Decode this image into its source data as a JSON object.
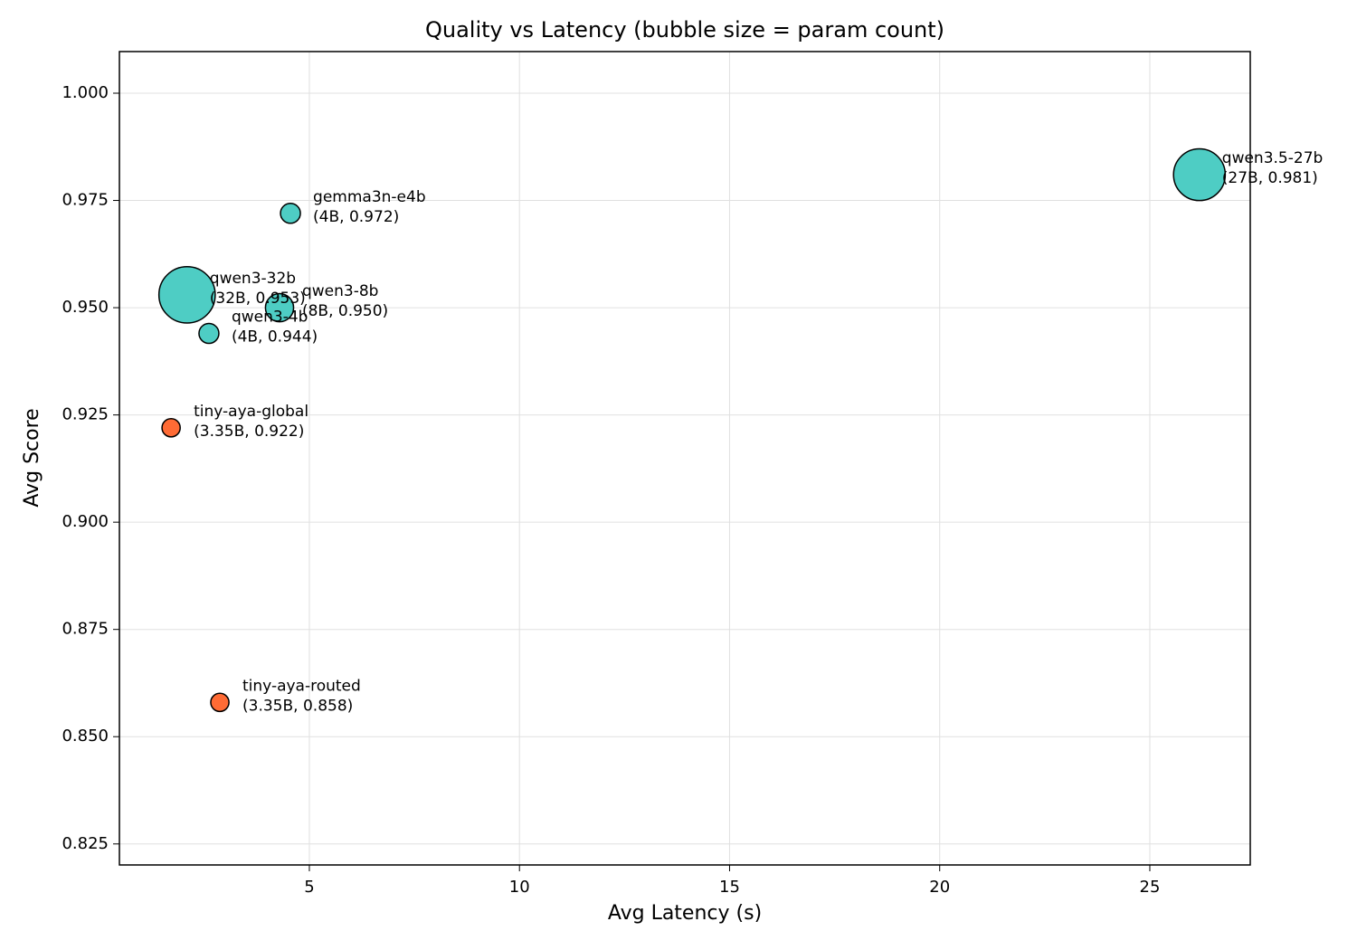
{
  "chart_data": {
    "type": "bubble",
    "title": "Quality vs Latency (bubble size = param count)",
    "x_label": "Avg Latency (s)",
    "y_label": "Avg Score",
    "xlim": [
      0.48,
      27.39
    ],
    "xticks": [
      5,
      10,
      15,
      20,
      25
    ],
    "ylim": [
      0.8201,
      1.0097
    ],
    "yticks": [
      {
        "value": 0.825,
        "label": "0.825"
      },
      {
        "value": 0.85,
        "label": "0.850"
      },
      {
        "value": 0.875,
        "label": "0.875"
      },
      {
        "value": 0.9,
        "label": "0.900"
      },
      {
        "value": 0.925,
        "label": "0.925"
      },
      {
        "value": 0.95,
        "label": "0.950"
      },
      {
        "value": 0.975,
        "label": "0.975"
      },
      {
        "value": 1.0,
        "label": "1.000"
      }
    ],
    "grid": true,
    "points": [
      {
        "name": "qwen3.5-27b",
        "x": 26.18,
        "y": 0.981,
        "size": 27,
        "color": "#4ecdc4",
        "annotation": "(27B, 0.981)"
      },
      {
        "name": "gemma3n-e4b",
        "x": 4.55,
        "y": 0.972,
        "size": 4,
        "color": "#4ecdc4",
        "annotation": "(4B, 0.972)"
      },
      {
        "name": "qwen3-32b",
        "x": 2.09,
        "y": 0.953,
        "size": 32,
        "color": "#4ecdc4",
        "annotation": "(32B, 0.953)"
      },
      {
        "name": "qwen3-8b",
        "x": 4.29,
        "y": 0.95,
        "size": 8,
        "color": "#4ecdc4",
        "annotation": "(8B, 0.950)"
      },
      {
        "name": "qwen3-4b",
        "x": 2.61,
        "y": 0.944,
        "size": 4,
        "color": "#4ecdc4",
        "annotation": "(4B, 0.944)"
      },
      {
        "name": "tiny-aya-global",
        "x": 1.71,
        "y": 0.922,
        "size": 3.35,
        "color": "#ff6b35",
        "annotation": "(3.35B, 0.922)"
      },
      {
        "name": "tiny-aya-routed",
        "x": 2.87,
        "y": 0.858,
        "size": 3.35,
        "color": "#ff6b35",
        "annotation": "(3.35B, 0.858)"
      }
    ]
  }
}
